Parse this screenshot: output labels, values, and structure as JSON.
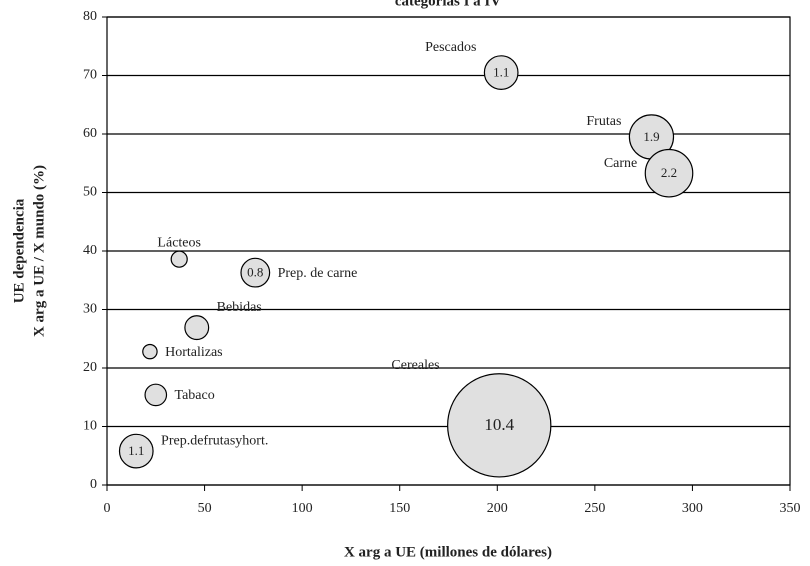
{
  "chart_data": {
    "type": "bubble",
    "title": "categorías I a IV",
    "xlabel": "X arg a UE (millones de dólares)",
    "ylabel": [
      "UE dependencia",
      "X arg a UE / X mundo (%)"
    ],
    "names": [
      "Pescados",
      "Frutas",
      "Carne",
      "Lácteos",
      "Prep. de carne",
      "Bebidas",
      "Hortalizas",
      "Tabaco",
      "Cereales",
      "Prep.defrutasyhort."
    ],
    "x": [
      202,
      279,
      288,
      37,
      76,
      46,
      22,
      25,
      201,
      15
    ],
    "y": [
      70.5,
      59.5,
      53.3,
      38.6,
      36.3,
      26.9,
      22.8,
      15.4,
      10.2,
      5.8
    ],
    "sizes": [
      1.1,
      1.9,
      2.2,
      0.25,
      0.8,
      0.55,
      0.2,
      0.45,
      10.4,
      1.1
    ],
    "size_labels": [
      "1.1",
      "1.9",
      "2.2",
      null,
      "0.8",
      null,
      null,
      null,
      "10.4",
      "1.1"
    ],
    "color": "#e0e0e0",
    "xlim": [
      0,
      350
    ],
    "xticks": [
      0,
      50,
      100,
      150,
      200,
      250,
      300,
      350
    ],
    "ylim": [
      0,
      80
    ],
    "yticks": [
      0,
      10,
      20,
      30,
      40,
      50,
      60,
      70,
      80
    ],
    "grid": true
  }
}
